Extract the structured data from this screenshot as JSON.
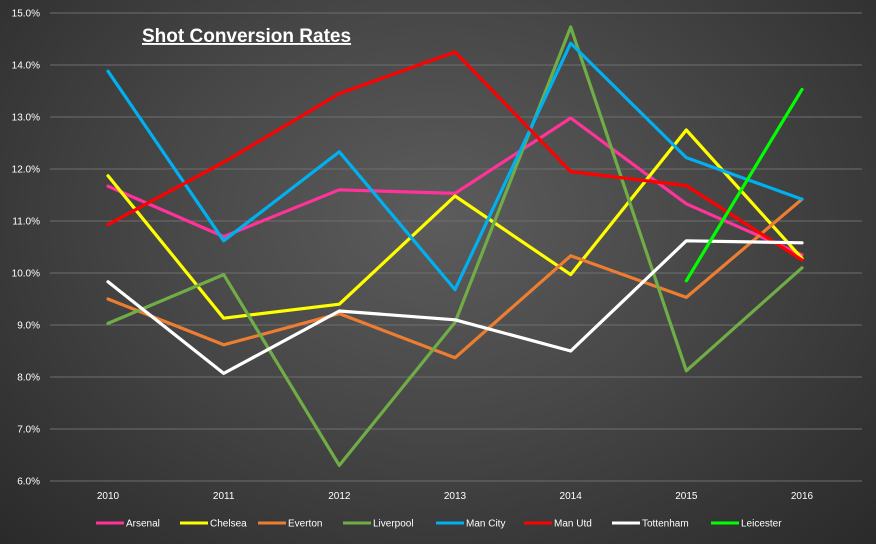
{
  "chart_data": {
    "type": "line",
    "title": "Shot Conversion Rates",
    "xlabel": "",
    "ylabel": "",
    "categories": [
      "2010",
      "2011",
      "2012",
      "2013",
      "2014",
      "2015",
      "2016"
    ],
    "ylim": [
      0.06,
      0.15
    ],
    "yticks": [
      "6.0%",
      "7.0%",
      "8.0%",
      "9.0%",
      "10.0%",
      "11.0%",
      "12.0%",
      "13.0%",
      "14.0%",
      "15.0%"
    ],
    "grid": true,
    "legend": "bottom",
    "series": [
      {
        "name": "Arsenal",
        "color": "#ff3399",
        "values": [
          0.1167,
          0.107,
          0.116,
          0.1153,
          0.1298,
          0.1133,
          0.1035
        ]
      },
      {
        "name": "Chelsea",
        "color": "#ffff00",
        "values": [
          0.1187,
          0.0913,
          0.094,
          0.1148,
          0.0997,
          0.1275,
          0.1028
        ]
      },
      {
        "name": "Everton",
        "color": "#ed7d31",
        "values": [
          0.095,
          0.0862,
          0.0922,
          0.0837,
          0.1033,
          0.0953,
          0.1142
        ]
      },
      {
        "name": "Liverpool",
        "color": "#70ad47",
        "values": [
          0.0903,
          0.0997,
          0.063,
          0.0905,
          0.1473,
          0.0812,
          0.101
        ]
      },
      {
        "name": "Man City",
        "color": "#00b0f0",
        "values": [
          0.1388,
          0.1062,
          0.1233,
          0.0968,
          0.1442,
          0.1222,
          0.1142
        ]
      },
      {
        "name": "Man Utd",
        "color": "#ff0000",
        "values": [
          0.1093,
          0.1213,
          0.1345,
          0.1425,
          0.1195,
          0.1168,
          0.1025
        ]
      },
      {
        "name": "Tottenham",
        "color": "#ffffff",
        "values": [
          0.0983,
          0.0807,
          0.0927,
          0.091,
          0.085,
          0.1062,
          0.1058
        ]
      },
      {
        "name": "Leicester",
        "color": "#00ff00",
        "values": [
          null,
          null,
          null,
          null,
          null,
          0.0985,
          0.1353
        ]
      }
    ]
  }
}
